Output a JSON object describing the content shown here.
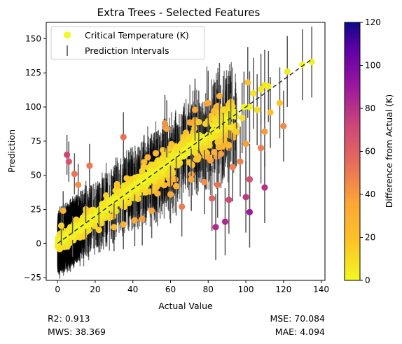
{
  "chart_data": {
    "type": "scatter",
    "title": "Extra Trees - Selected Features",
    "xlabel": "Actual Value",
    "ylabel": "Prediction",
    "xlim": [
      -6,
      142
    ],
    "ylim": [
      -27,
      162
    ],
    "xticks": [
      0,
      20,
      40,
      60,
      80,
      100,
      120,
      140
    ],
    "yticks": [
      -25,
      0,
      25,
      50,
      75,
      100,
      125,
      150
    ],
    "grid": false,
    "legend": {
      "position": "top-left",
      "entries": [
        "Critical Temperature (K)",
        "Prediction Intervals"
      ]
    },
    "reference_line": {
      "style": "dashed",
      "from": [
        0,
        0
      ],
      "to": [
        135,
        135
      ]
    },
    "colorbar": {
      "label": "Difference from Actual (K)",
      "range": [
        0,
        120
      ],
      "ticks": [
        0,
        20,
        40,
        60,
        80,
        100,
        120
      ],
      "colormap": [
        "#f0f921",
        "#fdb42f",
        "#ed7953",
        "#cc4778",
        "#9c179e",
        "#5c01a6",
        "#0d0887"
      ]
    },
    "series": [
      {
        "name": "Critical Temperature (K)",
        "note_dense_cluster": "thousands of points clustered along y = x between x = 0 and 95",
        "points": [
          [
            135,
            133
          ],
          [
            130,
            131
          ],
          [
            122,
            126
          ],
          [
            110,
            116
          ],
          [
            112,
            115
          ],
          [
            108,
            113
          ],
          [
            101,
            118
          ],
          [
            104,
            110
          ],
          [
            102,
            100
          ],
          [
            99,
            100
          ],
          [
            106,
            98
          ],
          [
            113,
            96
          ],
          [
            118,
            103
          ],
          [
            120,
            86
          ],
          [
            110,
            82
          ],
          [
            95,
            82
          ],
          [
            100,
            73
          ],
          [
            108,
            70
          ],
          [
            97,
            60
          ],
          [
            93,
            56
          ],
          [
            102,
            47
          ],
          [
            110,
            41
          ],
          [
            102,
            23
          ],
          [
            100,
            34
          ],
          [
            91,
            32
          ],
          [
            84,
            12
          ],
          [
            82,
            33
          ],
          [
            89,
            16
          ],
          [
            85,
            43
          ],
          [
            78,
            45
          ],
          [
            5,
            65
          ],
          [
            6,
            60
          ],
          [
            9,
            51
          ],
          [
            11,
            43
          ],
          [
            17,
            57
          ],
          [
            35,
            78
          ],
          [
            57,
            88
          ],
          [
            58,
            84
          ],
          [
            75,
            89
          ],
          [
            73,
            98
          ],
          [
            80,
            103
          ],
          [
            86,
            108
          ],
          [
            88,
            98
          ],
          [
            92,
            85
          ],
          [
            98,
            92
          ],
          [
            91,
            72
          ],
          [
            66,
            27
          ],
          [
            71,
            47
          ],
          [
            63,
            42
          ],
          [
            60,
            36
          ],
          [
            50,
            24
          ],
          [
            45,
            18
          ],
          [
            41,
            17
          ],
          [
            35,
            14
          ],
          [
            30,
            12
          ],
          [
            22,
            10
          ],
          [
            15,
            13
          ],
          [
            8,
            5
          ],
          [
            3,
            24
          ],
          [
            2,
            13
          ]
        ],
        "diffs": [
          2,
          1,
          4,
          6,
          3,
          5,
          17,
          6,
          2,
          1,
          8,
          17,
          15,
          34,
          28,
          13,
          27,
          38,
          37,
          37,
          55,
          69,
          79,
          66,
          59,
          72,
          49,
          73,
          42,
          33,
          60,
          54,
          42,
          32,
          40,
          43,
          31,
          26,
          14,
          25,
          23,
          22,
          10,
          7,
          6,
          19,
          39,
          24,
          21,
          24,
          26,
          27,
          24,
          21,
          18,
          12,
          2,
          3,
          21,
          11
        ]
      },
      {
        "name": "Prediction Intervals",
        "typical_halfwidth_near_zero": 17,
        "typical_halfwidth_high": 22
      }
    ]
  },
  "metrics": {
    "r2": "R2: 0.913",
    "mws": "MWS: 38.369",
    "mse": "MSE: 70.084",
    "mae": "MAE: 4.094"
  }
}
